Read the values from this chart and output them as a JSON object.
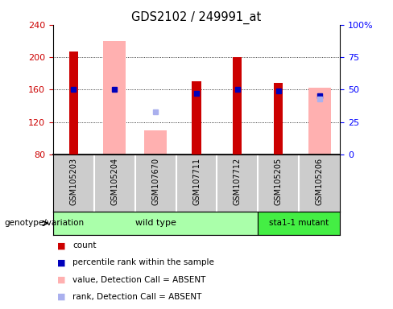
{
  "title": "GDS2102 / 249991_at",
  "samples": [
    "GSM105203",
    "GSM105204",
    "GSM107670",
    "GSM107711",
    "GSM107712",
    "GSM105205",
    "GSM105206"
  ],
  "groups": [
    "wild type",
    "wild type",
    "wild type",
    "wild type",
    "wild type",
    "sta1-1 mutant",
    "sta1-1 mutant"
  ],
  "ylim": [
    80,
    240
  ],
  "yticks": [
    80,
    120,
    160,
    200,
    240
  ],
  "y2lim": [
    0,
    100
  ],
  "y2ticks": [
    0,
    25,
    50,
    75,
    100
  ],
  "y2ticklabels": [
    "0",
    "25",
    "50",
    "75",
    "100%"
  ],
  "red_bars": [
    207,
    null,
    null,
    170,
    200,
    168,
    null
  ],
  "pink_bars": [
    null,
    220,
    110,
    null,
    null,
    null,
    162
  ],
  "blue_dots": [
    160,
    160,
    null,
    155,
    160,
    158,
    152
  ],
  "light_blue_dots": [
    null,
    null,
    133,
    null,
    null,
    null,
    148
  ],
  "red_color": "#cc0000",
  "pink_color": "#ffb0b0",
  "blue_color": "#0000bb",
  "light_blue_color": "#aab0ee",
  "label_area_bg": "#cccccc",
  "wt_color": "#aaffaa",
  "mut_color": "#44ee44",
  "legend_items": [
    {
      "color": "#cc0000",
      "label": "count"
    },
    {
      "color": "#0000bb",
      "label": "percentile rank within the sample"
    },
    {
      "color": "#ffb0b0",
      "label": "value, Detection Call = ABSENT"
    },
    {
      "color": "#aab0ee",
      "label": "rank, Detection Call = ABSENT"
    }
  ]
}
